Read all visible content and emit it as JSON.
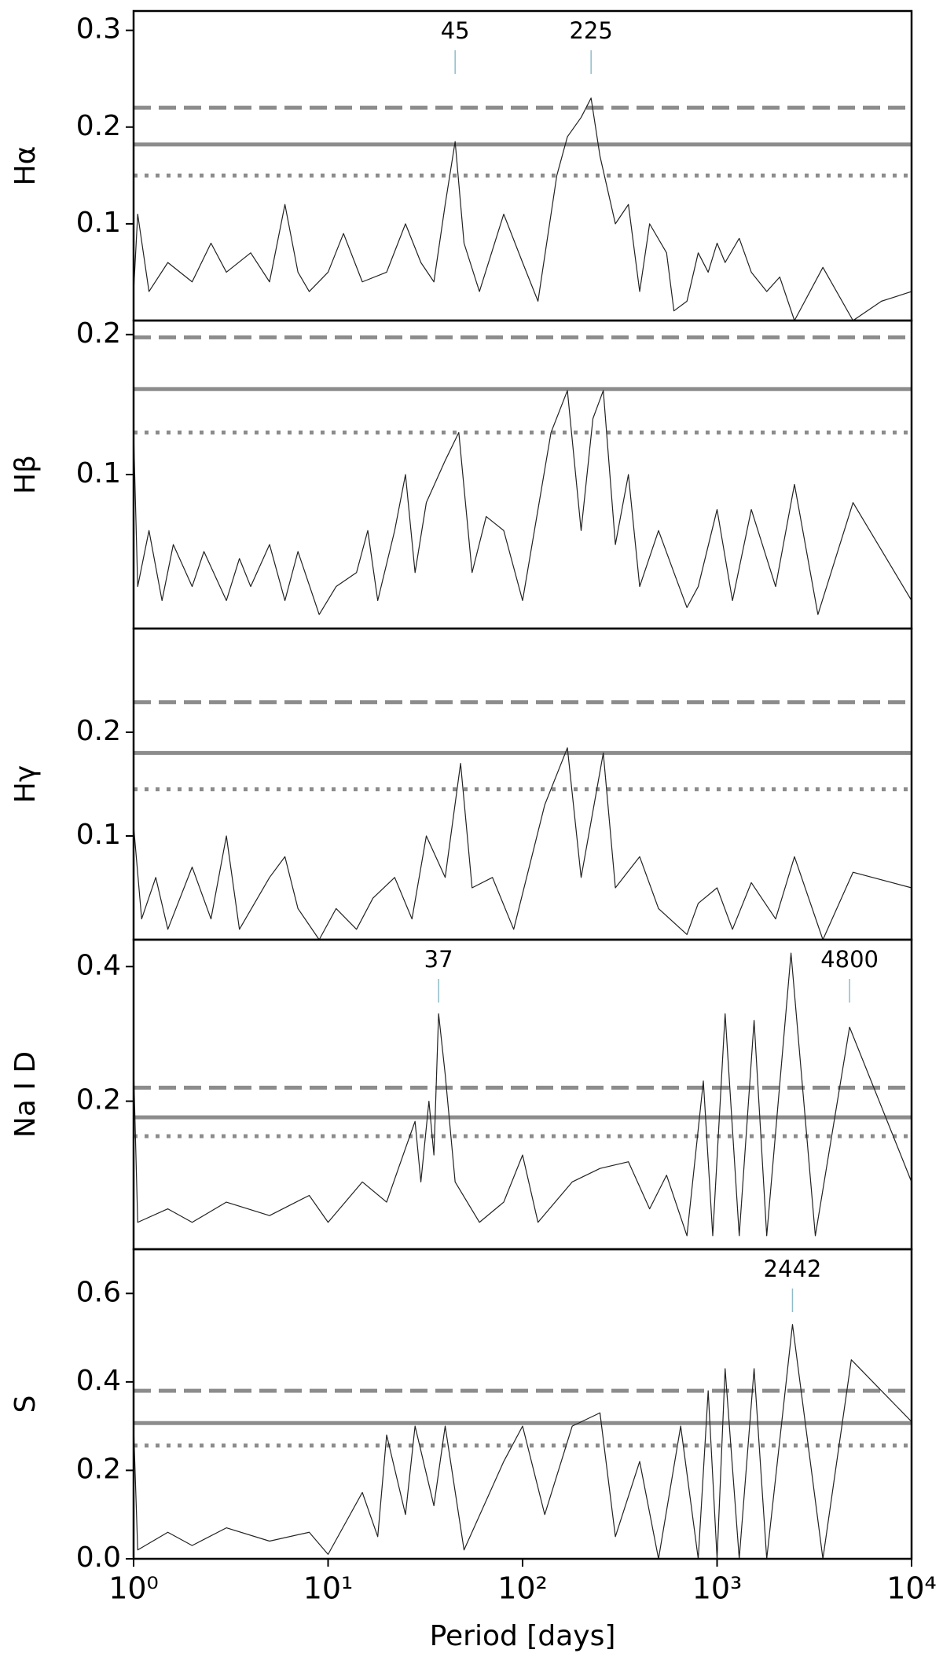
{
  "chart_data": [
    {
      "type": "line",
      "ylabel": "Hα",
      "xscale": "log",
      "xlim": [
        1,
        10000
      ],
      "ylim": [
        0,
        0.32
      ],
      "yticks": [
        0.1,
        0.2,
        0.3
      ],
      "color": "#222222",
      "x": [
        1,
        1.05,
        1.2,
        1.5,
        2,
        2.5,
        3,
        4,
        5,
        6,
        7,
        8,
        10,
        12,
        15,
        20,
        25,
        30,
        35,
        40,
        45,
        50,
        60,
        80,
        100,
        120,
        150,
        170,
        200,
        225,
        250,
        300,
        350,
        400,
        450,
        550,
        600,
        700,
        800,
        900,
        1000,
        1100,
        1300,
        1500,
        1800,
        2100,
        2500,
        3500,
        5000,
        7000,
        10000
      ],
      "values": [
        0.03,
        0.11,
        0.03,
        0.06,
        0.04,
        0.08,
        0.05,
        0.07,
        0.04,
        0.12,
        0.05,
        0.03,
        0.05,
        0.09,
        0.04,
        0.05,
        0.1,
        0.06,
        0.04,
        0.12,
        0.185,
        0.08,
        0.03,
        0.11,
        0.06,
        0.02,
        0.15,
        0.19,
        0.21,
        0.23,
        0.17,
        0.1,
        0.12,
        0.03,
        0.1,
        0.07,
        0.01,
        0.02,
        0.07,
        0.05,
        0.08,
        0.06,
        0.085,
        0.05,
        0.03,
        0.045,
        0.0,
        0.055,
        0.0,
        0.02,
        0.03
      ],
      "thresholds": [
        {
          "value": 0.22,
          "style": "dashed"
        },
        {
          "value": 0.182,
          "style": "solid"
        },
        {
          "value": 0.15,
          "style": "dotted"
        }
      ],
      "threshold_color": "#8c8c8c",
      "peaks": [
        45,
        225
      ]
    },
    {
      "type": "line",
      "ylabel": "Hβ",
      "xscale": "log",
      "xlim": [
        1,
        10000
      ],
      "ylim": [
        -0.01,
        0.21
      ],
      "yticks": [
        0.1,
        0.2
      ],
      "color": "#222222",
      "x": [
        1,
        1.05,
        1.2,
        1.4,
        1.6,
        2,
        2.3,
        3,
        3.5,
        4,
        5,
        6,
        7,
        9,
        11,
        14,
        16,
        18,
        22,
        25,
        28,
        32,
        40,
        47,
        55,
        65,
        80,
        100,
        140,
        170,
        200,
        230,
        260,
        300,
        350,
        400,
        500,
        600,
        700,
        800,
        1000,
        1200,
        1500,
        2000,
        2500,
        3300,
        5000,
        10000
      ],
      "values": [
        0.13,
        0.02,
        0.06,
        0.01,
        0.05,
        0.02,
        0.045,
        0.01,
        0.04,
        0.02,
        0.05,
        0.01,
        0.045,
        0.0,
        0.02,
        0.03,
        0.06,
        0.01,
        0.06,
        0.1,
        0.03,
        0.08,
        0.11,
        0.13,
        0.03,
        0.07,
        0.06,
        0.01,
        0.13,
        0.16,
        0.06,
        0.14,
        0.16,
        0.05,
        0.1,
        0.02,
        0.06,
        0.03,
        0.005,
        0.02,
        0.075,
        0.01,
        0.075,
        0.02,
        0.093,
        0.0,
        0.08,
        0.01
      ],
      "thresholds": [
        {
          "value": 0.198,
          "style": "dashed"
        },
        {
          "value": 0.161,
          "style": "solid"
        },
        {
          "value": 0.13,
          "style": "dotted"
        }
      ],
      "threshold_color": "#8c8c8c"
    },
    {
      "type": "line",
      "ylabel": "Hγ",
      "xscale": "log",
      "xlim": [
        1,
        10000
      ],
      "ylim": [
        0,
        0.3
      ],
      "yticks": [
        0.1,
        0.2
      ],
      "color": "#222222",
      "x": [
        1,
        1.1,
        1.3,
        1.5,
        2,
        2.5,
        3,
        3.5,
        5,
        6,
        7,
        9,
        11,
        14,
        17,
        22,
        27,
        32,
        40,
        48,
        55,
        70,
        90,
        130,
        170,
        200,
        260,
        300,
        400,
        500,
        700,
        800,
        1000,
        1200,
        1500,
        2000,
        2500,
        3500,
        5000,
        10000
      ],
      "values": [
        0.11,
        0.02,
        0.06,
        0.01,
        0.07,
        0.02,
        0.1,
        0.01,
        0.06,
        0.08,
        0.03,
        0.0,
        0.03,
        0.01,
        0.04,
        0.06,
        0.02,
        0.1,
        0.06,
        0.17,
        0.05,
        0.06,
        0.01,
        0.13,
        0.185,
        0.06,
        0.18,
        0.05,
        0.08,
        0.03,
        0.005,
        0.035,
        0.05,
        0.01,
        0.055,
        0.02,
        0.08,
        0.0,
        0.065,
        0.05
      ],
      "thresholds": [
        {
          "value": 0.229,
          "style": "dashed"
        },
        {
          "value": 0.18,
          "style": "solid"
        },
        {
          "value": 0.145,
          "style": "dotted"
        }
      ],
      "threshold_color": "#8c8c8c"
    },
    {
      "type": "line",
      "ylabel": "Na I D",
      "xscale": "log",
      "xlim": [
        1,
        10000
      ],
      "ylim": [
        -0.02,
        0.44
      ],
      "yticks": [
        0.2,
        0.4
      ],
      "color": "#222222",
      "x": [
        1,
        1.05,
        1.5,
        2,
        3,
        5,
        8,
        10,
        15,
        20,
        25,
        28,
        30,
        33,
        35,
        37,
        40,
        45,
        60,
        80,
        100,
        120,
        180,
        250,
        350,
        450,
        550,
        700,
        850,
        950,
        1100,
        1300,
        1550,
        1800,
        2400,
        3200,
        4800,
        10000
      ],
      "values": [
        0.25,
        0.02,
        0.04,
        0.02,
        0.05,
        0.03,
        0.06,
        0.02,
        0.08,
        0.05,
        0.13,
        0.17,
        0.08,
        0.2,
        0.12,
        0.33,
        0.24,
        0.08,
        0.02,
        0.05,
        0.12,
        0.02,
        0.08,
        0.1,
        0.11,
        0.04,
        0.09,
        0.0,
        0.23,
        0.0,
        0.33,
        0.0,
        0.32,
        0.0,
        0.42,
        0.0,
        0.31,
        0.08
      ],
      "thresholds": [
        {
          "value": 0.22,
          "style": "dashed"
        },
        {
          "value": 0.176,
          "style": "solid"
        },
        {
          "value": 0.148,
          "style": "dotted"
        }
      ],
      "threshold_color": "#8c8c8c",
      "peaks": [
        37,
        4800
      ]
    },
    {
      "type": "line",
      "ylabel": "S",
      "xlabel": "Period [days]",
      "xscale": "log",
      "xlim": [
        1,
        10000
      ],
      "ylim": [
        0,
        0.7
      ],
      "yticks": [
        {
          "value": 0,
          "label": "0.0"
        },
        0.2,
        0.4,
        0.6
      ],
      "color": "#222222",
      "xticks": [
        {
          "value": 1,
          "label": "10⁰"
        },
        {
          "value": 10,
          "label": "10¹"
        },
        {
          "value": 100,
          "label": "10²"
        },
        {
          "value": 1000,
          "label": "10³"
        },
        {
          "value": 10000,
          "label": "10⁴"
        }
      ],
      "x": [
        1,
        1.05,
        1.5,
        2,
        3,
        5,
        8,
        10,
        15,
        18,
        20,
        25,
        28,
        35,
        40,
        50,
        80,
        100,
        130,
        180,
        250,
        300,
        400,
        500,
        650,
        800,
        900,
        1000,
        1100,
        1300,
        1550,
        1800,
        2442,
        3500,
        4900,
        10000
      ],
      "values": [
        0.3,
        0.02,
        0.06,
        0.03,
        0.07,
        0.04,
        0.06,
        0.01,
        0.15,
        0.05,
        0.28,
        0.1,
        0.3,
        0.12,
        0.3,
        0.02,
        0.22,
        0.3,
        0.1,
        0.3,
        0.33,
        0.05,
        0.22,
        0.0,
        0.3,
        0.0,
        0.38,
        0.0,
        0.43,
        0.0,
        0.43,
        0.0,
        0.53,
        0.0,
        0.45,
        0.31
      ],
      "thresholds": [
        {
          "value": 0.38,
          "style": "dashed"
        },
        {
          "value": 0.307,
          "style": "solid"
        },
        {
          "value": 0.256,
          "style": "dotted"
        }
      ],
      "threshold_color": "#8c8c8c",
      "peaks": [
        2442
      ]
    }
  ]
}
